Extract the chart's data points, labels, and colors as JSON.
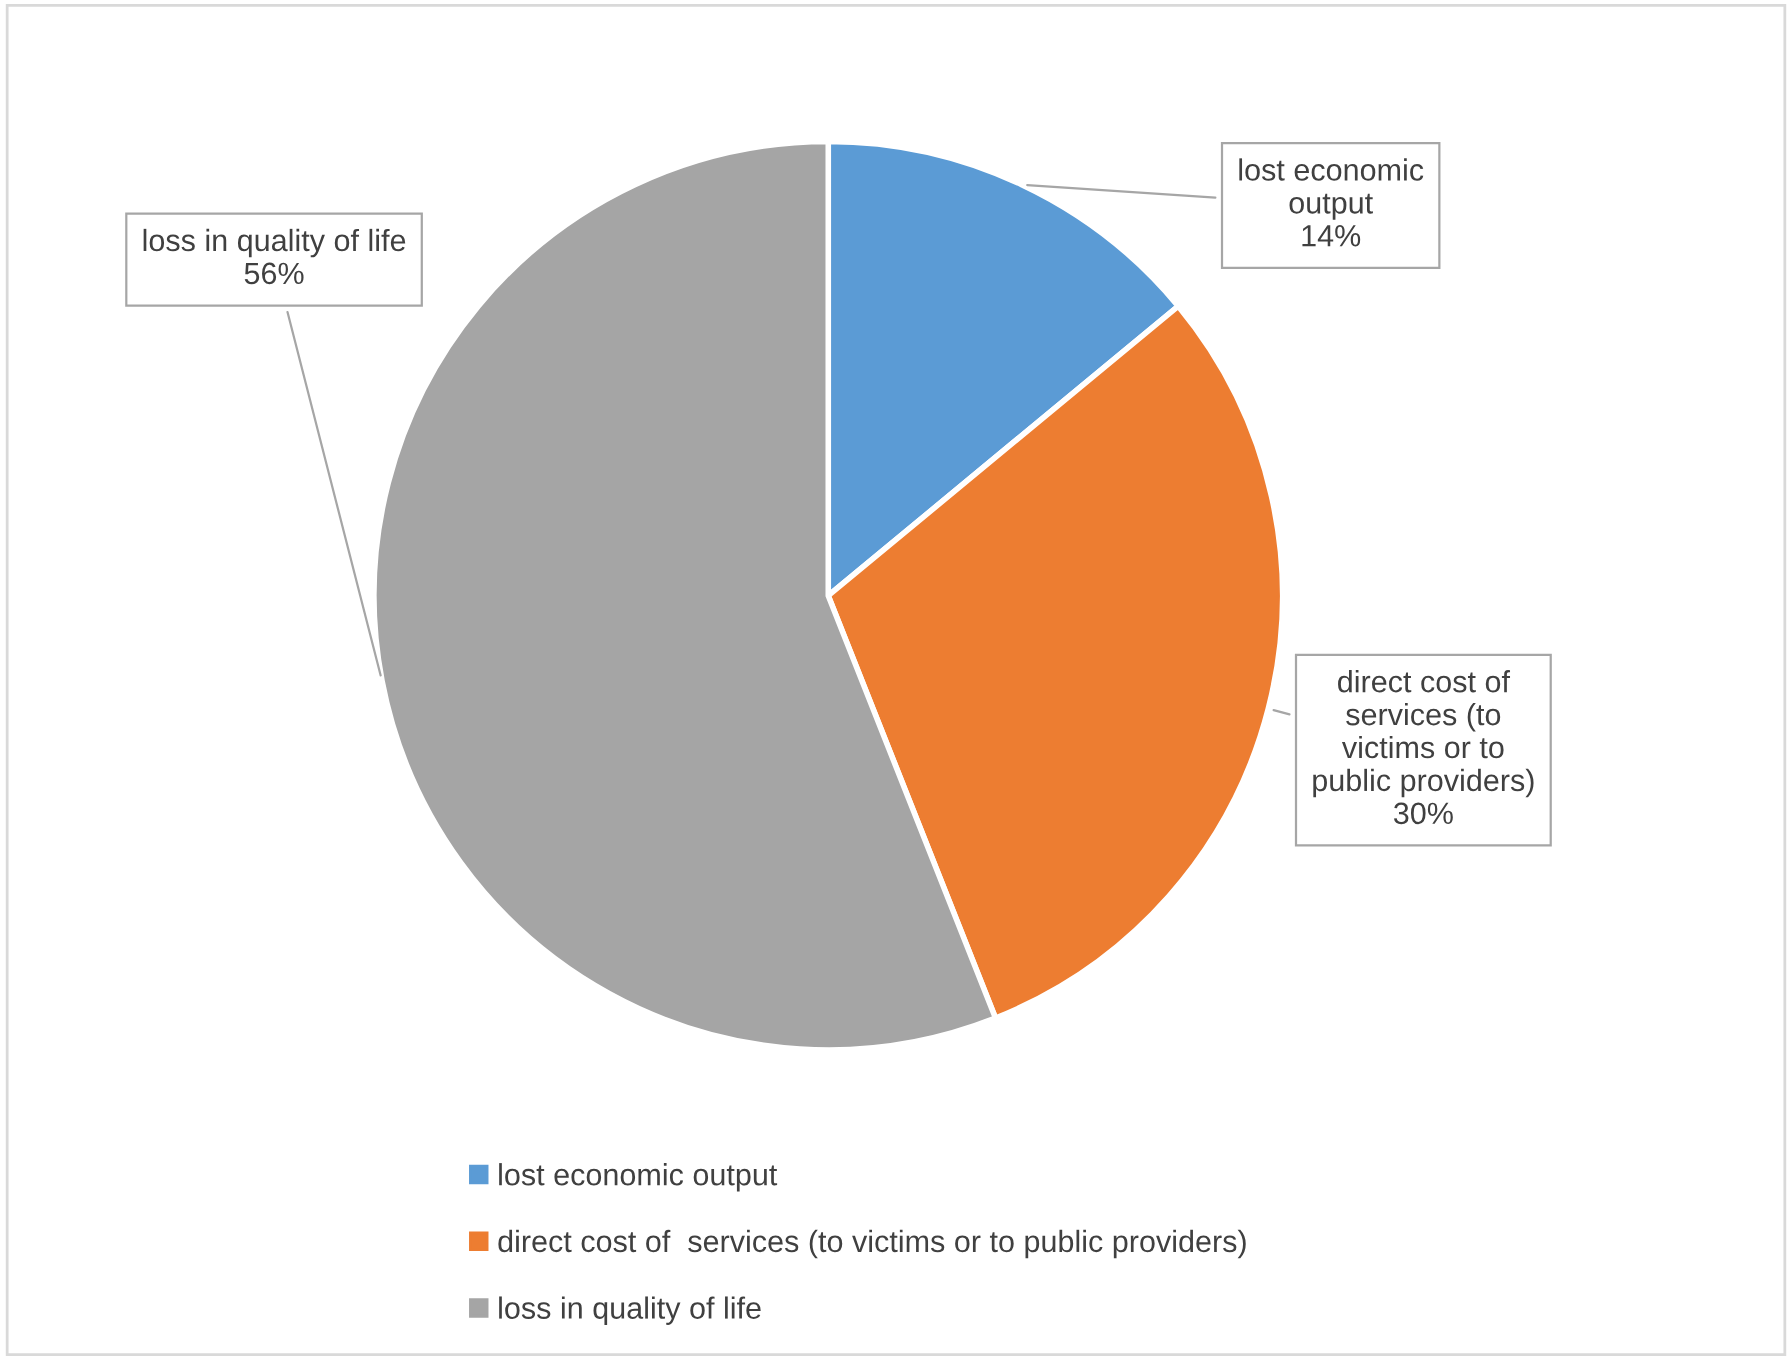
{
  "chart_data": {
    "type": "pie",
    "categories": [
      "lost economic output",
      "direct cost of  services (to victims or to public providers)",
      "loss in quality of life"
    ],
    "values": [
      14,
      30,
      56
    ],
    "colors": [
      "#5b9bd5",
      "#ed7d31",
      "#a5a5a5"
    ],
    "value_labels": [
      "14%",
      "30%",
      "56%"
    ],
    "legend": "bottom"
  }
}
